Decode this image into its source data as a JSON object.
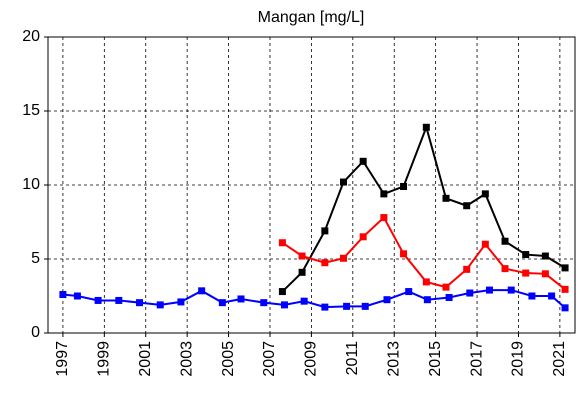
{
  "chart_data": {
    "type": "line",
    "title": "Mangan [mg/L]",
    "xlim": [
      1996.28,
      2021.73
    ],
    "xticks": [
      1997,
      1999,
      2001,
      2003,
      2005,
      2007,
      2009,
      2011,
      2013,
      2015,
      2017,
      2019,
      2021
    ],
    "ylim": [
      0,
      20
    ],
    "yticks": [
      0,
      5,
      10,
      15,
      20
    ],
    "grid": true,
    "series": [
      {
        "name": "blue",
        "color": "#0000ff",
        "x": [
          1997.0,
          1997.7,
          1998.7,
          1999.7,
          2000.7,
          2001.7,
          2002.7,
          2003.7,
          2004.7,
          2005.6,
          2006.7,
          2007.7,
          2008.65,
          2009.65,
          2010.7,
          2011.6,
          2012.65,
          2013.7,
          2014.6,
          2015.65,
          2016.65,
          2017.6,
          2018.65,
          2019.65,
          2020.6,
          2021.25
        ],
        "values": [
          2.6,
          2.5,
          2.2,
          2.2,
          2.05,
          1.9,
          2.1,
          2.85,
          2.05,
          2.3,
          2.05,
          1.9,
          2.15,
          1.75,
          1.8,
          1.8,
          2.25,
          2.8,
          2.25,
          2.4,
          2.7,
          2.9,
          2.9,
          2.5,
          2.5,
          1.7
        ]
      },
      {
        "name": "black",
        "color": "#000000",
        "x": [
          2007.6,
          2008.55,
          2009.65,
          2010.55,
          2011.5,
          2012.5,
          2013.45,
          2014.55,
          2015.5,
          2016.5,
          2017.4,
          2018.35,
          2019.35,
          2020.3,
          2021.25
        ],
        "values": [
          2.8,
          4.1,
          6.9,
          10.2,
          11.6,
          9.4,
          9.9,
          13.9,
          9.1,
          8.6,
          9.4,
          6.2,
          5.3,
          5.2,
          4.4
        ]
      },
      {
        "name": "red",
        "color": "#ff0000",
        "x": [
          2007.6,
          2008.55,
          2009.65,
          2010.55,
          2011.5,
          2012.5,
          2013.45,
          2014.55,
          2015.5,
          2016.5,
          2017.4,
          2018.35,
          2019.35,
          2020.3,
          2021.25
        ],
        "values": [
          6.1,
          5.2,
          4.75,
          5.05,
          6.5,
          7.8,
          5.35,
          3.45,
          3.1,
          4.3,
          6.0,
          4.35,
          4.05,
          4.0,
          2.95
        ]
      }
    ]
  }
}
